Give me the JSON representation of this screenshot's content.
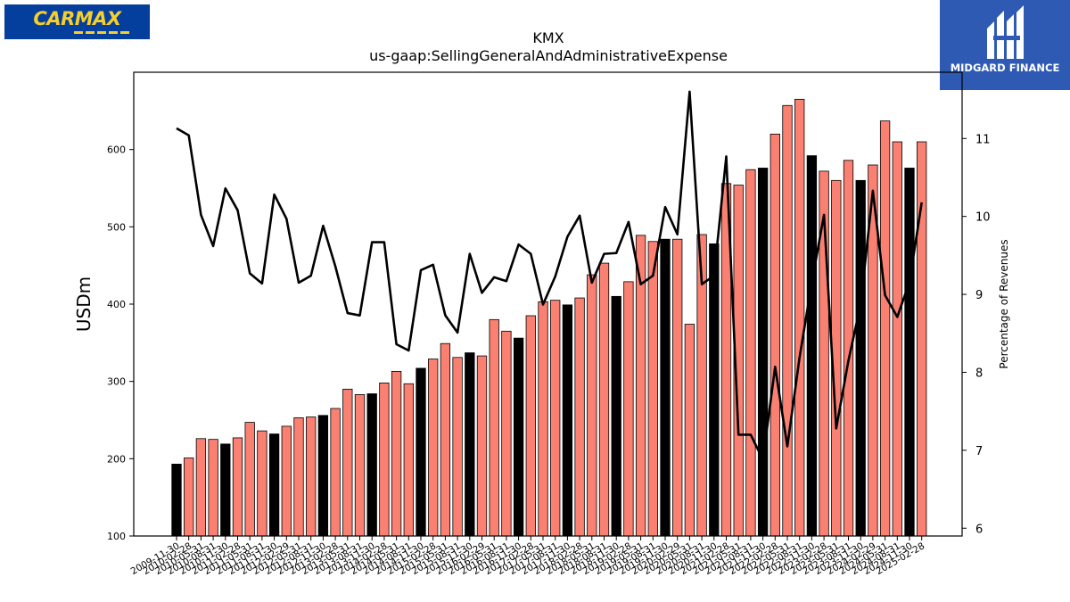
{
  "logos": {
    "left": {
      "text": "CARMAX",
      "name": "carmax-logo"
    },
    "right": {
      "text": "MIDGARD FINANCE",
      "name": "midgard-finance-logo"
    }
  },
  "chart_data": {
    "type": "bar",
    "title": "KMX",
    "subtitle": "us-gaap:SellingGeneralAndAdministrativeExpense",
    "ylabel": "USDm",
    "y2label": "Percentage of Revenues",
    "ylim": [
      100,
      700
    ],
    "y2lim": [
      5.9,
      11.85
    ],
    "yticks": [
      100,
      200,
      300,
      400,
      500,
      600
    ],
    "y2ticks": [
      6,
      7,
      8,
      9,
      10,
      11
    ],
    "grid": false,
    "colors": {
      "fiscal_q4": "#000000",
      "other_quarters": "#fa8072",
      "line": "#000000"
    },
    "categories": [
      "2009-11-30",
      "2010-02-28",
      "2010-05-31",
      "2010-08-31",
      "2010-11-30",
      "2011-02-28",
      "2011-05-31",
      "2011-08-31",
      "2011-11-30",
      "2012-02-29",
      "2012-05-31",
      "2012-08-31",
      "2012-11-30",
      "2013-02-28",
      "2013-05-31",
      "2013-08-31",
      "2013-11-30",
      "2014-02-28",
      "2014-05-31",
      "2014-08-31",
      "2014-11-30",
      "2015-02-28",
      "2015-05-31",
      "2015-08-31",
      "2015-11-30",
      "2016-02-29",
      "2016-05-31",
      "2016-08-31",
      "2016-11-30",
      "2017-02-28",
      "2017-05-31",
      "2017-08-31",
      "2017-11-30",
      "2018-02-28",
      "2018-05-31",
      "2018-08-31",
      "2018-11-30",
      "2019-02-28",
      "2019-05-31",
      "2019-08-31",
      "2019-11-30",
      "2020-02-29",
      "2020-05-31",
      "2020-08-31",
      "2020-11-30",
      "2021-02-28",
      "2021-05-31",
      "2021-08-31",
      "2021-11-30",
      "2022-02-28",
      "2022-05-31",
      "2022-08-31",
      "2022-11-30",
      "2023-02-28",
      "2023-05-31",
      "2023-08-31",
      "2023-11-30",
      "2024-02-29",
      "2024-05-31",
      "2024-08-31",
      "2024-11-30",
      "2025-02-28"
    ],
    "visible_xtick_labels": [
      "2009-11-30",
      "2010-02-28",
      "2010-05-31",
      "2010-08-31",
      "2010-11-30",
      "2011-02-28",
      "2011-05-31",
      "2011-08-31",
      "2011-11-30",
      "2012-02-29",
      "2012-05-31",
      "2012-08-31",
      "2012-11-30",
      "2013-02-28",
      "2013-05-31",
      "2013-08-31",
      "2013-11-30",
      "2014-02-28",
      "2014-05-31",
      "2014-08-31",
      "2014-11-30",
      "2015-02-28",
      "2015-05-31",
      "2015-08-31",
      "2015-11-30",
      "2016-02-29",
      "2016-05-31",
      "2016-08-31",
      "2016-11-30",
      "2017-02-28",
      "2017-05-31",
      "2017-08-31",
      "2017-11-30",
      "2018-02-28",
      "2018-05-31",
      "2018-08-31",
      "2018-11-30",
      "2019-02-28",
      "2019-05-31",
      "2019-08-31",
      "2019-11-30",
      "2020-02-29",
      "2020-05-31",
      "2020-08-31",
      "2020-11-30",
      "2021-02-28",
      "2021-05-31",
      "2021-08-31",
      "2021-11-30",
      "2022-02-28",
      "2022-05-31",
      "2022-08-31",
      "2022-11-30",
      "2023-02-28",
      "2023-05-31",
      "2023-08-31",
      "2023-11-30",
      "2024-02-29",
      "2024-05-31",
      "2024-08-31",
      "2024-11-30",
      "2025-02-28"
    ],
    "series": [
      {
        "type": "bar",
        "axis": "left",
        "values": [
          193,
          201,
          226,
          225,
          219,
          227,
          247,
          236,
          232,
          242,
          253,
          254,
          256,
          265,
          290,
          283,
          284,
          298,
          313,
          297,
          317,
          329,
          349,
          331,
          337,
          333,
          380,
          365,
          356,
          385,
          403,
          405,
          399,
          408,
          438,
          453,
          410,
          429,
          489,
          481,
          484,
          484,
          374,
          490,
          478,
          556,
          554,
          574,
          576,
          620,
          657,
          665,
          592,
          572,
          560,
          586,
          560,
          580,
          637,
          610,
          576,
          610
        ],
        "fiscal_q4_flags": [
          1,
          0,
          0,
          0,
          1,
          0,
          0,
          0,
          1,
          0,
          0,
          0,
          1,
          0,
          0,
          0,
          1,
          0,
          0,
          0,
          1,
          0,
          0,
          0,
          1,
          0,
          0,
          0,
          1,
          0,
          0,
          0,
          1,
          0,
          0,
          0,
          1,
          0,
          0,
          0,
          1,
          0,
          0,
          0,
          1,
          0,
          0,
          0,
          1,
          0,
          0,
          0,
          1,
          0,
          0,
          0,
          1,
          0,
          0,
          0,
          1,
          0
        ]
      },
      {
        "type": "line",
        "axis": "right",
        "values": [
          11.13,
          11.04,
          10.02,
          9.62,
          10.36,
          10.08,
          9.27,
          9.14,
          10.28,
          9.97,
          9.15,
          9.24,
          9.88,
          9.36,
          8.76,
          8.73,
          9.67,
          9.67,
          8.36,
          8.28,
          9.31,
          9.38,
          8.73,
          8.51,
          9.52,
          9.02,
          9.22,
          9.17,
          9.64,
          9.52,
          8.87,
          9.23,
          9.74,
          10.01,
          9.15,
          9.52,
          9.53,
          9.93,
          9.13,
          9.24,
          10.12,
          9.77,
          11.6,
          9.13,
          9.24,
          10.77,
          7.2,
          7.2,
          6.88,
          8.07,
          7.05,
          8.19,
          9.15,
          10.02,
          7.28,
          8.15,
          8.87,
          10.33,
          8.99,
          8.71,
          9.16,
          10.18
        ]
      }
    ]
  }
}
